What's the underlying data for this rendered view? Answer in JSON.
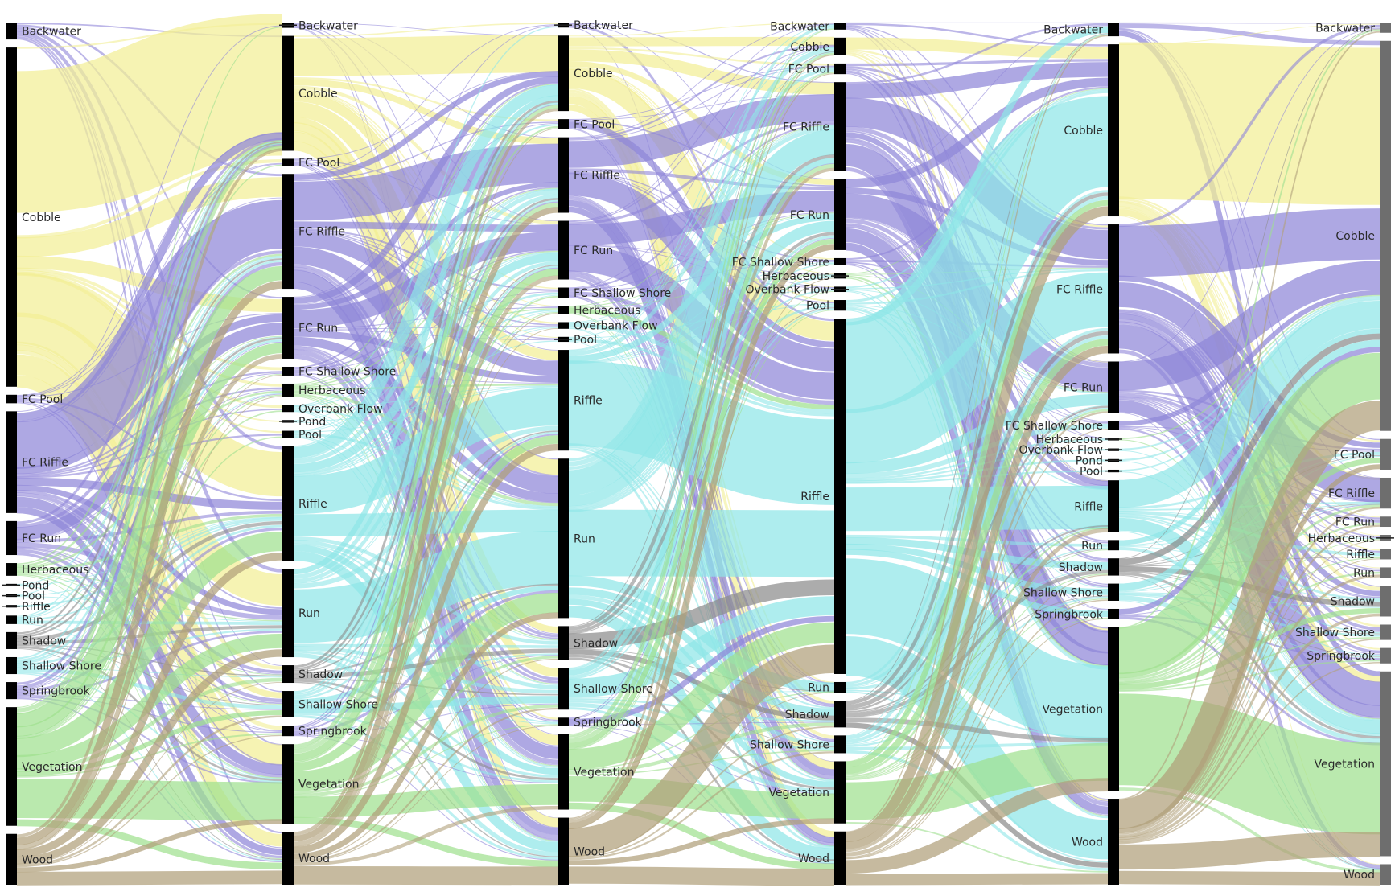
{
  "colors": {
    "Backwater": "#8f86d8",
    "Cobble": "#f2ee95",
    "FC Pool": "#8f86d8",
    "FC Riffle": "#8f86d8",
    "FC Run": "#8f86d8",
    "FC Shallow Shore": "#8f86d8",
    "Herbaceous": "#9fe08f",
    "Overbank Flow": "#8fe6e8",
    "Pond": "#8fe6e8",
    "Pool": "#8fe6e8",
    "Riffle": "#8fe6e8",
    "Run": "#8fe6e8",
    "Shadow": "#8c8c8c",
    "Shallow Shore": "#8fe6e8",
    "Springbrook": "#8f86d8",
    "Vegetation": "#9fe08f",
    "Wood": "#b0a07a"
  },
  "columns": [
    {
      "nodes": [
        {
          "name": "Backwater",
          "label": "Backwater",
          "value": 2
        },
        {
          "name": "Cobble",
          "label": "Cobble",
          "value": 40
        },
        {
          "name": "FC Pool",
          "label": "FC Pool",
          "value": 1
        },
        {
          "name": "FC Riffle",
          "label": "FC Riffle",
          "value": 12
        },
        {
          "name": "FC Run",
          "label": "FC Run",
          "value": 4
        },
        {
          "name": "Herbaceous",
          "label": "Herbaceous",
          "value": 1.5
        },
        {
          "name": "Pond",
          "label": "Pond",
          "value": 0.3
        },
        {
          "name": "Pool",
          "label": "Pool",
          "value": 0.3
        },
        {
          "name": "Riffle",
          "label": "Riffle",
          "value": 0.3
        },
        {
          "name": "Run",
          "label": "Run",
          "value": 1
        },
        {
          "name": "Shadow",
          "label": "Shadow",
          "value": 2
        },
        {
          "name": "Shallow Shore",
          "label": "Shallow Shore",
          "value": 2
        },
        {
          "name": "Springbrook",
          "label": "Springbrook",
          "value": 2
        },
        {
          "name": "Vegetation",
          "label": "Vegetation",
          "value": 14
        },
        {
          "name": "Wood",
          "label": "Wood",
          "value": 6
        }
      ]
    },
    {
      "nodes": [
        {
          "name": "Backwater",
          "label": "Backwater",
          "value": 0.6
        },
        {
          "name": "Cobble",
          "label": "Cobble",
          "value": 13
        },
        {
          "name": "FC Pool",
          "label": "FC Pool",
          "value": 0.8
        },
        {
          "name": "FC Riffle",
          "label": "FC Riffle",
          "value": 13
        },
        {
          "name": "FC Run",
          "label": "FC Run",
          "value": 7
        },
        {
          "name": "FC Shallow Shore",
          "label": "FC Shallow Shore",
          "value": 1
        },
        {
          "name": "Herbaceous",
          "label": "Herbaceous",
          "value": 1.5
        },
        {
          "name": "Overbank Flow",
          "label": "Overbank Flow",
          "value": 0.8
        },
        {
          "name": "Pond",
          "label": "Pond",
          "value": 0.3
        },
        {
          "name": "Pool",
          "label": "Pool",
          "value": 0.8
        },
        {
          "name": "Riffle",
          "label": "Riffle",
          "value": 13
        },
        {
          "name": "Run",
          "label": "Run",
          "value": 10
        },
        {
          "name": "Shadow",
          "label": "Shadow",
          "value": 2
        },
        {
          "name": "Shallow Shore",
          "label": "Shallow Shore",
          "value": 3
        },
        {
          "name": "Springbrook",
          "label": "Springbrook",
          "value": 1.2
        },
        {
          "name": "Vegetation",
          "label": "Vegetation",
          "value": 9
        },
        {
          "name": "Wood",
          "label": "Wood",
          "value": 6
        }
      ]
    },
    {
      "nodes": [
        {
          "name": "Backwater",
          "label": "Backwater",
          "value": 0.6
        },
        {
          "name": "Cobble",
          "label": "Cobble",
          "value": 9
        },
        {
          "name": "FC Pool",
          "label": "FC Pool",
          "value": 1.2
        },
        {
          "name": "FC Riffle",
          "label": "FC Riffle",
          "value": 9
        },
        {
          "name": "FC Run",
          "label": "FC Run",
          "value": 7
        },
        {
          "name": "FC Shallow Shore",
          "label": "FC Shallow Shore",
          "value": 1.2
        },
        {
          "name": "Herbaceous",
          "label": "Herbaceous",
          "value": 1
        },
        {
          "name": "Overbank Flow",
          "label": "Overbank Flow",
          "value": 0.8
        },
        {
          "name": "Pool",
          "label": "Pool",
          "value": 0.6
        },
        {
          "name": "Riffle",
          "label": "Riffle",
          "value": 12
        },
        {
          "name": "Run",
          "label": "Run",
          "value": 19
        },
        {
          "name": "Shadow",
          "label": "Shadow",
          "value": 4
        },
        {
          "name": "Shallow Shore",
          "label": "Shallow Shore",
          "value": 5
        },
        {
          "name": "Springbrook",
          "label": "Springbrook",
          "value": 1
        },
        {
          "name": "Vegetation",
          "label": "Vegetation",
          "value": 9
        },
        {
          "name": "Wood",
          "label": "Wood",
          "value": 8
        }
      ]
    },
    {
      "nodes": [
        {
          "name": "Backwater",
          "label": "Backwater",
          "value": 0.8
        },
        {
          "name": "Cobble",
          "label": "Cobble",
          "value": 2
        },
        {
          "name": "FC Pool",
          "label": "FC Pool",
          "value": 1.2
        },
        {
          "name": "FC Riffle",
          "label": "FC Riffle",
          "value": 10
        },
        {
          "name": "FC Run",
          "label": "FC Run",
          "value": 8
        },
        {
          "name": "FC Shallow Shore",
          "label": "FC Shallow Shore",
          "value": 0.8
        },
        {
          "name": "Herbaceous",
          "label": "Herbaceous",
          "value": 0.6
        },
        {
          "name": "Overbank Flow",
          "label": "Overbank Flow",
          "value": 0.6
        },
        {
          "name": "Pool",
          "label": "Pool",
          "value": 1.2
        },
        {
          "name": "Riffle",
          "label": "Riffle",
          "value": 40
        },
        {
          "name": "Run",
          "label": "Run",
          "value": 1.2
        },
        {
          "name": "Shadow",
          "label": "Shadow",
          "value": 3
        },
        {
          "name": "Shallow Shore",
          "label": "Shallow Shore",
          "value": 2
        },
        {
          "name": "Vegetation",
          "label": "Vegetation",
          "value": 7
        },
        {
          "name": "Wood",
          "label": "Wood",
          "value": 6
        }
      ]
    },
    {
      "nodes": [
        {
          "name": "Backwater",
          "label": "Backwater",
          "value": 1.6
        },
        {
          "name": "Cobble",
          "label": "Cobble",
          "value": 20
        },
        {
          "name": "FC Riffle",
          "label": "FC Riffle",
          "value": 15
        },
        {
          "name": "FC Run",
          "label": "FC Run",
          "value": 6
        },
        {
          "name": "FC Shallow Shore",
          "label": "FC Shallow Shore",
          "value": 1
        },
        {
          "name": "Herbaceous",
          "label": "Herbaceous",
          "value": 0.3
        },
        {
          "name": "Overbank Flow",
          "label": "Overbank Flow",
          "value": 0.3
        },
        {
          "name": "Pond",
          "label": "Pond",
          "value": 0.3
        },
        {
          "name": "Pool",
          "label": "Pool",
          "value": 0.3
        },
        {
          "name": "Riffle",
          "label": "Riffle",
          "value": 6
        },
        {
          "name": "Run",
          "label": "Run",
          "value": 1.2
        },
        {
          "name": "Shadow",
          "label": "Shadow",
          "value": 2
        },
        {
          "name": "Shallow Shore",
          "label": "Shallow Shore",
          "value": 2
        },
        {
          "name": "Springbrook",
          "label": "Springbrook",
          "value": 1.2
        },
        {
          "name": "Vegetation",
          "label": "Vegetation",
          "value": 19
        },
        {
          "name": "Wood",
          "label": "Wood",
          "value": 10
        }
      ]
    },
    {
      "nodes": [
        {
          "name": "Backwater",
          "label": "Backwater",
          "value": 1
        },
        {
          "name": "Cobble",
          "label": "Cobble",
          "value": 38
        },
        {
          "name": "FC Pool",
          "label": "FC Pool",
          "value": 3
        },
        {
          "name": "FC Riffle",
          "label": "FC Riffle",
          "value": 3
        },
        {
          "name": "FC Run",
          "label": "FC Run",
          "value": 1
        },
        {
          "name": "Herbaceous",
          "label": "Herbaceous",
          "value": 0.6
        },
        {
          "name": "Riffle",
          "label": "Riffle",
          "value": 1
        },
        {
          "name": "Run",
          "label": "Run",
          "value": 1
        },
        {
          "name": "Shadow",
          "label": "Shadow",
          "value": 3
        },
        {
          "name": "Shallow Shore",
          "label": "Shallow Shore",
          "value": 1.5
        },
        {
          "name": "Springbrook",
          "label": "Springbrook",
          "value": 1.5
        },
        {
          "name": "Vegetation",
          "label": "Vegetation",
          "value": 18
        },
        {
          "name": "Wood",
          "label": "Wood",
          "value": 2
        }
      ]
    }
  ]
}
